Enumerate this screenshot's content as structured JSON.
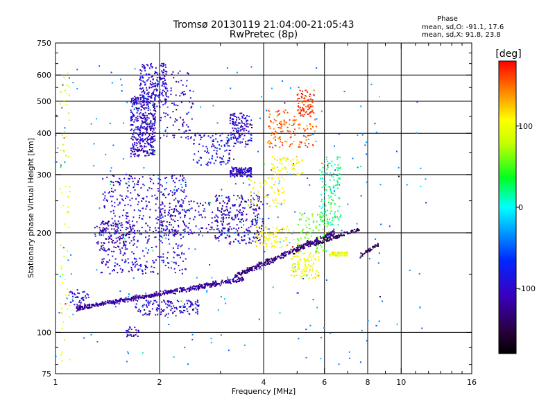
{
  "chart_data": {
    "type": "scatter",
    "title": "Tromsø 20130119 21:04:00-21:05:43",
    "subtitle": "RwPretec (8p)",
    "xlabel": "Frequency [MHz]",
    "ylabel": "Stationary phase Virtual Height [km]",
    "xscale": "log",
    "yscale": "log",
    "xlim": [
      1,
      16
    ],
    "ylim": [
      75,
      750
    ],
    "xticks": [
      1,
      2,
      4,
      6,
      8,
      10,
      16
    ],
    "xtick_labels": [
      "1",
      "2",
      "4",
      "6",
      "8",
      "10",
      "16"
    ],
    "yticks": [
      75,
      100,
      200,
      300,
      400,
      500,
      600,
      750
    ],
    "ytick_labels": [
      "75",
      "100",
      "200",
      "300",
      "400",
      "500",
      "600",
      "750"
    ],
    "grid": true,
    "phase_legend": {
      "title": "Phase",
      "line_o": "mean, sd,O: -91.1, 17.6",
      "line_x": "mean, sd,X: 91.8, 23.8"
    },
    "colorbar": {
      "label": "[deg]",
      "range": [
        -180,
        180
      ],
      "ticks": [
        100,
        0,
        -100
      ],
      "tick_labels": [
        "100",
        "0",
        "-100"
      ],
      "position": "right"
    },
    "clusters": [
      {
        "f": [
          1.65,
          1.95
        ],
        "h": [
          340,
          520
        ],
        "phase": -105,
        "n": 420
      },
      {
        "f": [
          1.75,
          2.1
        ],
        "h": [
          480,
          650
        ],
        "phase": -100,
        "n": 180
      },
      {
        "f": [
          2.0,
          2.5
        ],
        "h": [
          380,
          620
        ],
        "phase": -105,
        "n": 110
      },
      {
        "f": [
          1.35,
          2.4
        ],
        "h": [
          150,
          300
        ],
        "phase": -100,
        "n": 520
      },
      {
        "f": [
          1.3,
          1.7
        ],
        "h": [
          175,
          215
        ],
        "phase": -115,
        "n": 120
      },
      {
        "f": [
          2.0,
          3.2
        ],
        "h": [
          195,
          250
        ],
        "phase": -110,
        "n": 160
      },
      {
        "f": [
          2.5,
          3.3
        ],
        "h": [
          320,
          400
        ],
        "phase": -95,
        "n": 110
      },
      {
        "f": [
          3.2,
          3.7
        ],
        "h": [
          370,
          460
        ],
        "phase": -105,
        "n": 130
      },
      {
        "f": [
          3.2,
          3.7
        ],
        "h": [
          295,
          315
        ],
        "phase": -100,
        "n": 120
      },
      {
        "f": [
          2.9,
          4.0
        ],
        "h": [
          185,
          260
        ],
        "phase": -105,
        "n": 240
      },
      {
        "f": [
          3.6,
          4.6
        ],
        "h": [
          240,
          300
        ],
        "phase": 110,
        "n": 60
      },
      {
        "f": [
          3.8,
          4.9
        ],
        "h": [
          180,
          210
        ],
        "phase": 110,
        "n": 90
      },
      {
        "f": [
          4.2,
          5.2
        ],
        "h": [
          300,
          340
        ],
        "phase": 105,
        "n": 60
      },
      {
        "f": [
          4.1,
          5.7
        ],
        "h": [
          360,
          470
        ],
        "phase": 155,
        "n": 140
      },
      {
        "f": [
          5.0,
          5.6
        ],
        "h": [
          450,
          540
        ],
        "phase": 165,
        "n": 80
      },
      {
        "f": [
          4.8,
          5.8
        ],
        "h": [
          145,
          175
        ],
        "phase": 105,
        "n": 110
      },
      {
        "f": [
          5.0,
          6.2
        ],
        "h": [
          175,
          230
        ],
        "phase": 60,
        "n": 90
      },
      {
        "f": [
          5.8,
          6.7
        ],
        "h": [
          210,
          340
        ],
        "phase": 20,
        "n": 140
      },
      {
        "f": [
          6.2,
          7.0
        ],
        "h": [
          170,
          175
        ],
        "phase": 100,
        "n": 60
      },
      {
        "f": [
          1.1,
          1.25
        ],
        "h": [
          120,
          135
        ],
        "phase": -100,
        "n": 40
      },
      {
        "f": [
          1.7,
          2.6
        ],
        "h": [
          112,
          125
        ],
        "phase": -100,
        "n": 140
      },
      {
        "f": [
          1.6,
          1.75
        ],
        "h": [
          97,
          104
        ],
        "phase": -110,
        "n": 25
      },
      {
        "f": [
          1.03,
          1.1
        ],
        "h": [
          80,
          620
        ],
        "phase": 90,
        "n": 70
      },
      {
        "f": [
          1.0,
          12.0
        ],
        "h": [
          80,
          640
        ],
        "phase": -40,
        "n": 260
      }
    ],
    "traces": [
      {
        "f": [
          1.15,
          3.5
        ],
        "h": [
          118,
          145
        ],
        "spread": 0.025,
        "phase": -120,
        "n": 520
      },
      {
        "f": [
          3.3,
          6.4
        ],
        "h": [
          148,
          200
        ],
        "spread": 0.03,
        "phase": -130,
        "n": 360
      },
      {
        "f": [
          5.6,
          7.6
        ],
        "h": [
          185,
          205
        ],
        "spread": 0.02,
        "phase": -140,
        "n": 90
      },
      {
        "f": [
          7.6,
          8.6
        ],
        "h": [
          170,
          185
        ],
        "spread": 0.02,
        "phase": -145,
        "n": 40
      }
    ]
  }
}
